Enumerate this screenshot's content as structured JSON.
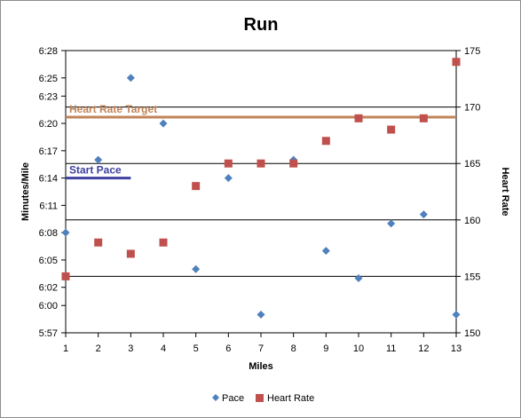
{
  "chart_data": {
    "type": "scatter",
    "title": "Run",
    "xlabel": "Miles",
    "ylabel_left": "Minutes/Mile",
    "ylabel_right": "Heart Rate",
    "x_ticks": [
      "1",
      "2",
      "3",
      "4",
      "5",
      "6",
      "7",
      "8",
      "9",
      "10",
      "11",
      "12",
      "13"
    ],
    "left_axis": {
      "ticks": [
        "5:57",
        "6:00",
        "6:02",
        "6:05",
        "6:08",
        "6:11",
        "6:14",
        "6:17",
        "6:20",
        "6:23",
        "6:25",
        "6:28"
      ],
      "range_seconds": [
        357,
        388
      ]
    },
    "right_axis": {
      "ticks": [
        "150",
        "155",
        "160",
        "165",
        "170",
        "175"
      ],
      "range": [
        150,
        175
      ]
    },
    "series": [
      {
        "name": "Pace",
        "axis": "left",
        "marker": "diamond",
        "color": "#4f81bd",
        "x": [
          1,
          2,
          3,
          4,
          5,
          6,
          7,
          8,
          9,
          10,
          11,
          12,
          13
        ],
        "y": [
          "6:08",
          "6:16",
          "6:25",
          "6:20",
          "6:04",
          "6:14",
          "5:59",
          "6:16",
          "6:06",
          "6:03",
          "6:09",
          "6:10",
          "5:59"
        ]
      },
      {
        "name": "Heart Rate",
        "axis": "right",
        "marker": "square",
        "color": "#c0504d",
        "x": [
          1,
          2,
          3,
          4,
          5,
          6,
          7,
          8,
          9,
          10,
          11,
          12,
          13
        ],
        "y": [
          155,
          158,
          157,
          158,
          163,
          165,
          165,
          165,
          167,
          169,
          168,
          169,
          174
        ]
      }
    ],
    "reference_lines": [
      {
        "label": "Heart Rate Target",
        "axis": "right",
        "value": 169.1,
        "color": "#c0845a",
        "x_range": [
          1,
          13
        ]
      },
      {
        "label": "Start Pace",
        "axis": "left",
        "value": "6:14",
        "color": "#4040a0",
        "x_range": [
          1,
          3
        ]
      }
    ],
    "grid": "horizontal",
    "legend": "bottom",
    "legend_entries": [
      "Pace",
      "Heart Rate"
    ]
  }
}
